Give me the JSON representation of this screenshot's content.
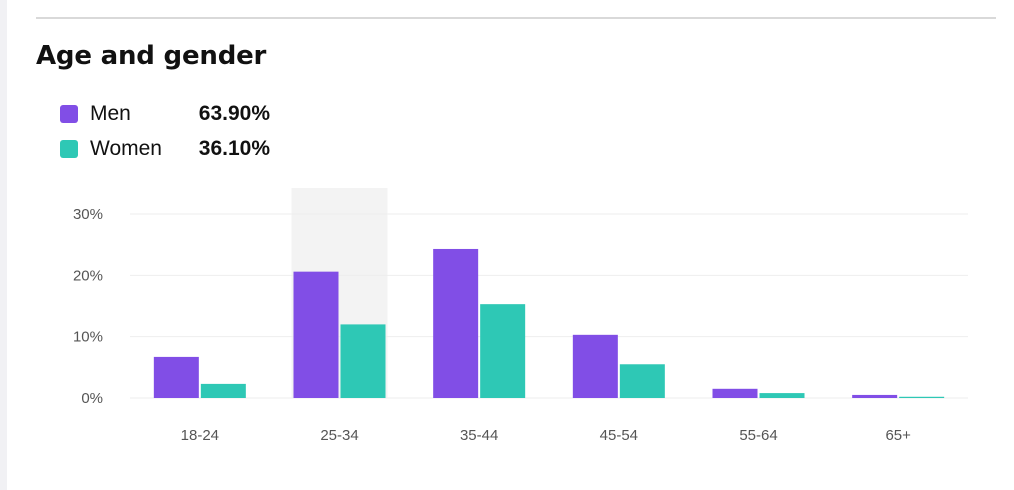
{
  "card": {
    "title": "Age and gender"
  },
  "colors": {
    "men": "#814ee6",
    "women": "#2ec8b5",
    "highlight": "#f3f3f3",
    "grid": "#eeeeee"
  },
  "legend": [
    {
      "name": "Men",
      "value": "63.90%",
      "color": "#814ee6"
    },
    {
      "name": "Women",
      "value": "36.10%",
      "color": "#2ec8b5"
    }
  ],
  "chart_data": {
    "type": "bar",
    "title": "Age and gender",
    "xlabel": "",
    "ylabel": "",
    "categories": [
      "18-24",
      "25-34",
      "35-44",
      "45-54",
      "55-64",
      "65+"
    ],
    "series": [
      {
        "name": "Men",
        "values": [
          6.7,
          20.6,
          24.3,
          10.3,
          1.5,
          0.5
        ]
      },
      {
        "name": "Women",
        "values": [
          2.3,
          12.0,
          15.3,
          5.5,
          0.8,
          0.2
        ]
      }
    ],
    "ylim": [
      0,
      30
    ],
    "yticks": [
      0,
      10,
      20,
      30
    ],
    "ytick_labels": [
      "0%",
      "10%",
      "20%",
      "30%"
    ],
    "highlighted_category": "25-34",
    "grid": true
  }
}
